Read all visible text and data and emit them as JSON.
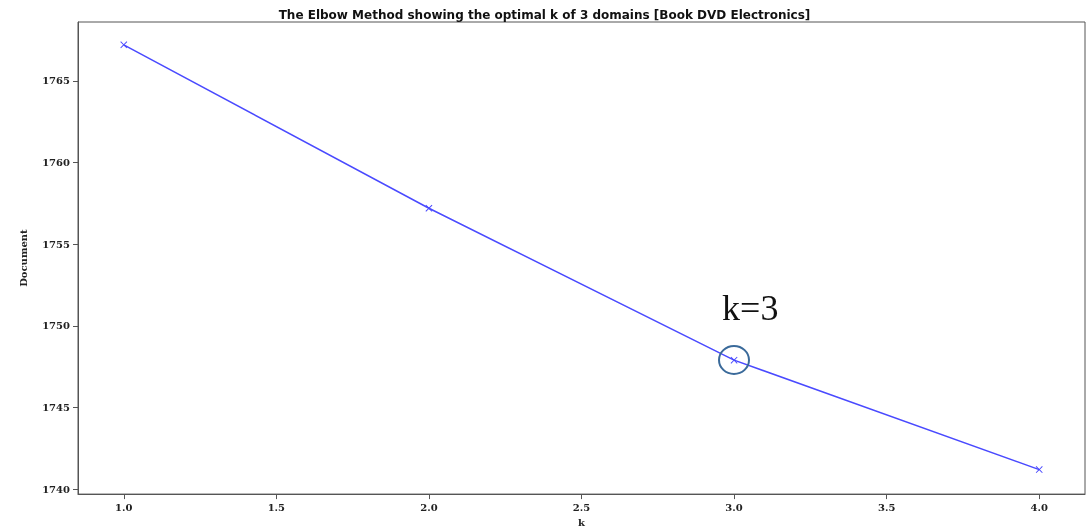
{
  "chart_data": {
    "type": "line",
    "title": "The Elbow Method showing the optimal k of 3 domains [Book DVD Electronics]",
    "xlabel": "k",
    "ylabel": "Document",
    "x": [
      1,
      2,
      3,
      4
    ],
    "series": [
      {
        "color": "#4a4aff",
        "values": [
          1767.2,
          1757.2,
          1747.9,
          1741.2
        ]
      }
    ],
    "xlim": [
      0.85,
      4.15
    ],
    "ylim": [
      1739.7,
      1768.6
    ],
    "xticks": [
      {
        "value": 1,
        "label": "1.0"
      },
      {
        "value": 1.5,
        "label": "1.5"
      },
      {
        "value": 2,
        "label": "2.0"
      },
      {
        "value": 2.5,
        "label": "2.5"
      },
      {
        "value": 3,
        "label": "3.0"
      },
      {
        "value": 3.5,
        "label": "3.5"
      },
      {
        "value": 4,
        "label": "4.0"
      }
    ],
    "yticks": [
      1740,
      1745,
      1750,
      1755,
      1760,
      1765
    ],
    "annotations": [
      {
        "text": "k=3",
        "x": 3,
        "y": 1747.9
      }
    ],
    "marker": "cross",
    "line_style": "solid",
    "grid": false
  }
}
